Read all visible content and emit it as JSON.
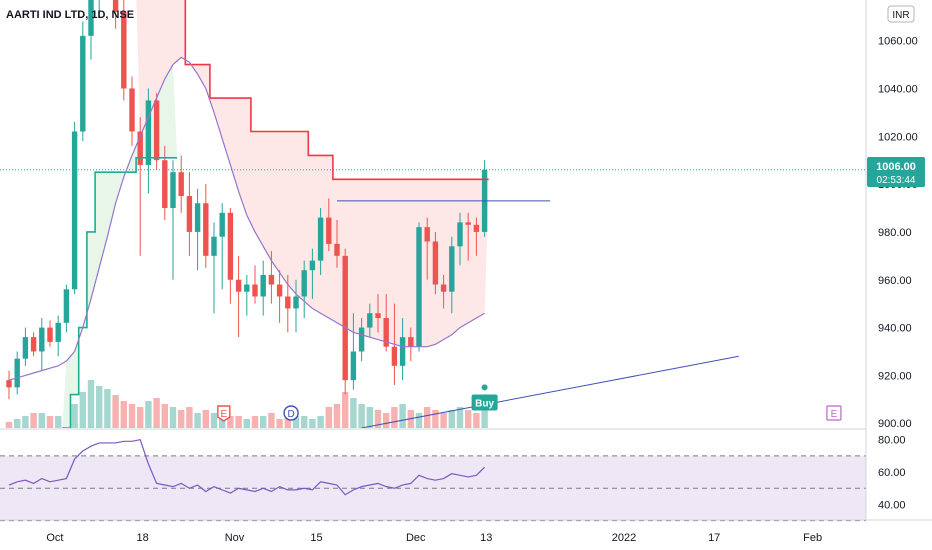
{
  "header": {
    "symbol_title": "AARTI IND LTD, 1D, NSE"
  },
  "currency_badge": "INR",
  "price_tag": {
    "value": "1006.00",
    "countdown": "02:53:44"
  },
  "signal_label": "Buy",
  "event_markers": {
    "earnings": "E",
    "dividend": "D"
  },
  "colors": {
    "up": "#26a69a",
    "down": "#ef5350",
    "upper_band": "#f23645",
    "lower_band": "#22ab94",
    "band_fill_up": "#e8f5e9",
    "band_fill_down": "#fde7e7",
    "ma_line": "#9575cd",
    "trendline": "#3f51b5",
    "rsi_line": "#7e57c2",
    "rsi_fill": "#ede7f6",
    "axis_text": "#131722",
    "grid_dots": "#26a69a"
  },
  "chart_data": [
    {
      "type": "candlestick",
      "panel": "price",
      "title": "AARTI IND LTD, 1D, NSE",
      "ylim": [
        898,
        1077
      ],
      "y_ticks": [
        "1060.00",
        "1040.00",
        "1020.00",
        "1000.00",
        "980.00",
        "960.00",
        "940.00",
        "920.00",
        "900.00"
      ],
      "x_ticks": [
        "Oct",
        "18",
        "Nov",
        "15",
        "Dec",
        "13",
        "2022",
        "17",
        "Feb"
      ],
      "last_price": 1006,
      "ohlc": [
        [
          918,
          922,
          910,
          915
        ],
        [
          915,
          930,
          912,
          927
        ],
        [
          927,
          940,
          924,
          936
        ],
        [
          936,
          938,
          928,
          930
        ],
        [
          930,
          944,
          922,
          940
        ],
        [
          940,
          943,
          932,
          934
        ],
        [
          934,
          945,
          928,
          942
        ],
        [
          942,
          958,
          938,
          956
        ],
        [
          956,
          1026,
          954,
          1022
        ],
        [
          1022,
          1068,
          1018,
          1062
        ],
        [
          1062,
          1090,
          1052,
          1086
        ],
        [
          1086,
          1100,
          1070,
          1092
        ],
        [
          1092,
          1110,
          1080,
          1105
        ],
        [
          1105,
          1110,
          1065,
          1072
        ],
        [
          1072,
          1080,
          1035,
          1040
        ],
        [
          1040,
          1045,
          1016,
          1022
        ],
        [
          1022,
          1028,
          970,
          1008
        ],
        [
          1008,
          1040,
          996,
          1035
        ],
        [
          1035,
          1038,
          1006,
          1010
        ],
        [
          1010,
          1016,
          985,
          990
        ],
        [
          990,
          1010,
          960,
          1005
        ],
        [
          1005,
          1012,
          988,
          995
        ],
        [
          995,
          1005,
          970,
          980
        ],
        [
          980,
          998,
          964,
          992
        ],
        [
          992,
          1000,
          965,
          970
        ],
        [
          970,
          984,
          946,
          978
        ],
        [
          978,
          992,
          956,
          988
        ],
        [
          988,
          990,
          950,
          960
        ],
        [
          960,
          970,
          936,
          955
        ],
        [
          955,
          962,
          945,
          958
        ],
        [
          958,
          966,
          950,
          953
        ],
        [
          953,
          968,
          945,
          962
        ],
        [
          962,
          972,
          950,
          958
        ],
        [
          958,
          964,
          942,
          953
        ],
        [
          953,
          962,
          938,
          948
        ],
        [
          948,
          960,
          938,
          953
        ],
        [
          953,
          968,
          944,
          964
        ],
        [
          964,
          973,
          952,
          968
        ],
        [
          968,
          990,
          962,
          986
        ],
        [
          986,
          994,
          972,
          975
        ],
        [
          975,
          985,
          965,
          970
        ],
        [
          970,
          973,
          912,
          918
        ],
        [
          918,
          946,
          914,
          930
        ],
        [
          930,
          944,
          926,
          940
        ],
        [
          940,
          950,
          936,
          946
        ],
        [
          946,
          954,
          938,
          944
        ],
        [
          944,
          954,
          930,
          932
        ],
        [
          932,
          950,
          916,
          924
        ],
        [
          924,
          944,
          918,
          936
        ],
        [
          936,
          940,
          926,
          932
        ],
        [
          932,
          984,
          930,
          982
        ],
        [
          982,
          986,
          960,
          976
        ],
        [
          976,
          980,
          954,
          958
        ],
        [
          958,
          962,
          948,
          955
        ],
        [
          955,
          978,
          946,
          974
        ],
        [
          974,
          988,
          966,
          984
        ],
        [
          984,
          988,
          968,
          983
        ],
        [
          983,
          986,
          970,
          980
        ],
        [
          980,
          1010,
          978,
          1006
        ]
      ],
      "series": [
        {
          "name": "moving-average",
          "values": [
            918,
            919,
            920,
            921,
            922,
            923,
            924,
            926,
            930,
            940,
            952,
            965,
            978,
            992,
            1003,
            1012,
            1020,
            1028,
            1036,
            1044,
            1050,
            1053,
            1051,
            1046,
            1040,
            1030,
            1019,
            1008,
            997,
            987,
            980,
            974,
            968,
            963,
            958,
            954,
            951,
            948,
            946,
            944,
            942,
            940,
            938,
            937,
            936,
            935,
            934,
            933,
            932,
            932,
            932,
            932,
            933,
            935,
            937,
            940,
            942,
            944,
            946
          ]
        },
        {
          "name": "upper-band",
          "values": [
            null,
            null,
            null,
            null,
            null,
            null,
            null,
            null,
            null,
            null,
            null,
            null,
            null,
            null,
            null,
            null,
            1082,
            1082,
            1082,
            1082,
            1082,
            1082,
            1050,
            1050,
            1050,
            1036,
            1036,
            1036,
            1036,
            1036,
            1022,
            1022,
            1022,
            1022,
            1022,
            1022,
            1022,
            1012,
            1012,
            1012,
            1002,
            1002,
            1002,
            1002,
            1002,
            1002,
            1002,
            1002,
            1002,
            1002,
            1002,
            1002,
            1002,
            1002,
            1002,
            1002,
            1002,
            1002,
            1002
          ]
        },
        {
          "name": "lower-band",
          "values": [
            null,
            null,
            null,
            null,
            null,
            null,
            null,
            898,
            912,
            940,
            980,
            1005,
            1005,
            1005,
            1005,
            1005,
            1011,
            1011,
            1011,
            1011,
            1011,
            null,
            null,
            null,
            null,
            null,
            null,
            null,
            null,
            null,
            null,
            null,
            null,
            null,
            null,
            null,
            null,
            null,
            null,
            null,
            null,
            null,
            null,
            null,
            null,
            null,
            null,
            null,
            null,
            null,
            null,
            null,
            null,
            null,
            null,
            null,
            null,
            null,
            null
          ]
        }
      ],
      "volume": [
        2,
        3,
        4,
        5,
        5,
        4,
        4,
        5,
        8,
        12,
        16,
        14,
        13,
        11,
        9,
        8,
        7,
        9,
        10,
        8,
        7,
        6,
        7,
        5,
        6,
        5,
        5,
        4,
        4,
        3,
        4,
        4,
        5,
        3,
        4,
        4,
        4,
        3,
        4,
        7,
        8,
        12,
        10,
        8,
        7,
        6,
        5,
        7,
        8,
        6,
        5,
        7,
        6,
        5,
        6,
        7,
        6,
        5,
        8
      ]
    },
    {
      "type": "line",
      "panel": "rsi",
      "ylim": [
        31,
        86
      ],
      "y_ticks": [
        "80.00",
        "60.00",
        "40.00"
      ],
      "levels": [
        70,
        50,
        30
      ],
      "series": [
        {
          "name": "rsi",
          "values": [
            52,
            54,
            55,
            53,
            56,
            54,
            55,
            56,
            68,
            73,
            76,
            78,
            78,
            78,
            79,
            79,
            80,
            65,
            53,
            52,
            51,
            53,
            50,
            52,
            48,
            51,
            49,
            47,
            50,
            49,
            48,
            50,
            48,
            51,
            49,
            49,
            50,
            49,
            54,
            53,
            52,
            46,
            49,
            51,
            52,
            53,
            51,
            50,
            52,
            53,
            58,
            56,
            55,
            56,
            59,
            58,
            57,
            58,
            63
          ]
        }
      ]
    }
  ]
}
